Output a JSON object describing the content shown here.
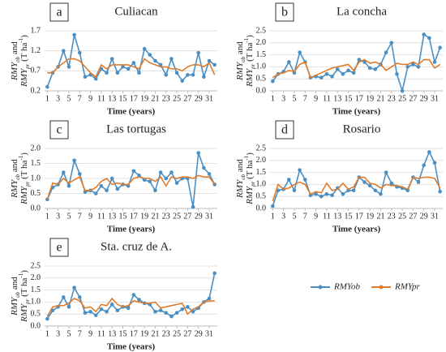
{
  "chart_data": [
    {
      "type": "line",
      "label": "a",
      "title": "Culiacan",
      "xlabel": "Time (years)",
      "ylabel": [
        "RMY",
        "ob",
        " and",
        "RMY",
        "pr",
        " (T ha",
        "-1",
        ")"
      ],
      "x": [
        1,
        2,
        3,
        4,
        5,
        6,
        7,
        8,
        9,
        10,
        11,
        12,
        13,
        14,
        15,
        16,
        17,
        18,
        19,
        20,
        21,
        22,
        23,
        24,
        25,
        26,
        27,
        28,
        29,
        30,
        31,
        32
      ],
      "xlim": [
        0.5,
        32.5
      ],
      "xticks": [
        1,
        3,
        5,
        7,
        9,
        11,
        13,
        15,
        17,
        19,
        21,
        23,
        25,
        27,
        29,
        31
      ],
      "ylim": [
        0.2,
        1.7
      ],
      "yticks": [
        0.2,
        0.7,
        1.2,
        1.7
      ],
      "grid": true,
      "series": [
        {
          "name": "RMYob",
          "color": "#4a8fc4",
          "values": [
            0.3,
            0.65,
            0.8,
            1.2,
            0.8,
            1.6,
            1.15,
            0.55,
            0.6,
            0.5,
            0.75,
            0.65,
            1.0,
            0.65,
            0.8,
            0.75,
            0.9,
            0.65,
            1.25,
            1.1,
            0.95,
            0.85,
            0.6,
            1.0,
            0.65,
            0.45,
            0.6,
            0.6,
            1.15,
            0.55,
            0.95,
            0.85
          ]
        },
        {
          "name": "RMYpr",
          "color": "#e07b2a",
          "values": [
            0.65,
            0.65,
            0.8,
            0.9,
            1.0,
            1.0,
            0.95,
            0.8,
            0.65,
            0.55,
            0.85,
            0.75,
            0.85,
            0.85,
            0.85,
            0.85,
            0.8,
            0.75,
            1.0,
            0.9,
            0.85,
            0.8,
            0.8,
            0.75,
            0.75,
            0.7,
            0.8,
            0.85,
            0.85,
            0.8,
            0.9,
            0.6
          ]
        }
      ]
    },
    {
      "type": "line",
      "label": "b",
      "title": "La concha",
      "xlabel": "Time (years)",
      "ylabel": [
        "RMY",
        "ob",
        " and",
        "RMY",
        "pr",
        " (T ha",
        "-1",
        ")"
      ],
      "x": [
        1,
        2,
        3,
        4,
        5,
        6,
        7,
        8,
        9,
        10,
        11,
        12,
        13,
        14,
        15,
        16,
        17,
        18,
        19,
        20,
        21,
        22,
        23,
        24,
        25,
        26,
        27,
        28,
        29,
        30,
        31,
        32
      ],
      "xlim": [
        0.5,
        32.5
      ],
      "xticks": [
        1,
        3,
        5,
        7,
        9,
        11,
        13,
        15,
        17,
        19,
        21,
        23,
        25,
        27,
        29,
        31
      ],
      "ylim": [
        0,
        2.5
      ],
      "yticks": [
        {
          "value": 0,
          "label": "0.0"
        },
        0.5,
        {
          "value": 1,
          "label": "1.0"
        },
        1.5,
        {
          "value": 2,
          "label": "2.0"
        },
        2.5
      ],
      "grid": true,
      "series": [
        {
          "name": "RMYob",
          "color": "#4a8fc4",
          "values": [
            0.4,
            0.7,
            0.8,
            1.2,
            0.75,
            1.6,
            1.2,
            0.55,
            0.6,
            0.55,
            0.7,
            0.6,
            0.9,
            0.7,
            0.85,
            0.75,
            1.3,
            1.2,
            0.95,
            0.9,
            1.1,
            1.6,
            2.0,
            0.7,
            0.0,
            1.0,
            1.1,
            1.0,
            2.35,
            2.2,
            1.2,
            1.8
          ]
        },
        {
          "name": "RMYpr",
          "color": "#e07b2a",
          "values": [
            0.55,
            0.7,
            0.75,
            0.85,
            0.8,
            1.1,
            1.2,
            0.55,
            0.65,
            0.75,
            0.85,
            0.95,
            1.0,
            1.05,
            1.1,
            0.85,
            1.2,
            1.3,
            1.15,
            1.2,
            1.1,
            0.85,
            1.0,
            1.15,
            1.1,
            1.1,
            1.2,
            1.1,
            1.3,
            1.3,
            0.95,
            1.1
          ]
        }
      ]
    },
    {
      "type": "line",
      "label": "c",
      "title": "Las tortugas",
      "xlabel": "Time (years)",
      "ylabel": [
        "RMY",
        "ob",
        " and",
        "RMY",
        "pr",
        " (T ha",
        "-1",
        ")"
      ],
      "x": [
        1,
        2,
        3,
        4,
        5,
        6,
        7,
        8,
        9,
        10,
        11,
        12,
        13,
        14,
        15,
        16,
        17,
        18,
        19,
        20,
        21,
        22,
        23,
        24,
        25,
        26,
        27,
        28,
        29,
        30,
        31,
        32
      ],
      "xlim": [
        0.5,
        32.5
      ],
      "xticks": [
        1,
        3,
        5,
        7,
        9,
        11,
        13,
        15,
        17,
        19,
        21,
        23,
        25,
        27,
        29,
        31
      ],
      "ylim": [
        0,
        2
      ],
      "yticks": [
        {
          "value": 0,
          "label": "0.0"
        },
        0.5,
        {
          "value": 1,
          "label": "1.0"
        },
        1.5,
        {
          "value": 2,
          "label": "2.0"
        }
      ],
      "grid": true,
      "series": [
        {
          "name": "RMYob",
          "color": "#4a8fc4",
          "values": [
            0.3,
            0.7,
            0.8,
            1.2,
            0.75,
            1.6,
            1.15,
            0.55,
            0.6,
            0.5,
            0.75,
            0.6,
            1.0,
            0.65,
            0.8,
            0.75,
            1.25,
            1.1,
            0.95,
            0.9,
            0.6,
            1.2,
            1.0,
            1.2,
            0.85,
            1.0,
            1.0,
            0.05,
            1.85,
            1.35,
            1.15,
            0.8
          ]
        },
        {
          "name": "RMYpr",
          "color": "#e07b2a",
          "values": [
            0.3,
            0.85,
            0.8,
            1.0,
            0.85,
            0.95,
            1.05,
            0.6,
            0.6,
            0.7,
            0.9,
            1.0,
            0.8,
            0.85,
            0.8,
            0.8,
            1.0,
            1.05,
            1.0,
            1.0,
            0.9,
            1.05,
            0.75,
            1.05,
            1.0,
            1.05,
            1.05,
            1.0,
            1.1,
            1.05,
            1.05,
            0.8
          ]
        }
      ]
    },
    {
      "type": "line",
      "label": "d",
      "title": "Rosario",
      "xlabel": "Time (years)",
      "ylabel": [
        "RMY",
        "ob",
        " and",
        "RMY",
        "pr",
        " (T ha",
        "-1",
        ")"
      ],
      "x": [
        1,
        2,
        3,
        4,
        5,
        6,
        7,
        8,
        9,
        10,
        11,
        12,
        13,
        14,
        15,
        16,
        17,
        18,
        19,
        20,
        21,
        22,
        23,
        24,
        25,
        26,
        27,
        28,
        29,
        30,
        31,
        32
      ],
      "xlim": [
        0.5,
        32.5
      ],
      "xticks": [
        1,
        3,
        5,
        7,
        9,
        11,
        13,
        15,
        17,
        19,
        21,
        23,
        25,
        27,
        29,
        31
      ],
      "ylim": [
        0,
        2.5
      ],
      "yticks": [
        {
          "value": 0,
          "label": "0.0"
        },
        0.5,
        {
          "value": 1,
          "label": "1.0"
        },
        1.5,
        {
          "value": 2,
          "label": "2.0"
        },
        2.5
      ],
      "grid": true,
      "series": [
        {
          "name": "RMYob",
          "color": "#4a8fc4",
          "values": [
            0.1,
            0.75,
            0.8,
            1.2,
            0.75,
            1.6,
            1.2,
            0.55,
            0.6,
            0.5,
            0.6,
            0.55,
            0.85,
            0.6,
            0.75,
            0.75,
            1.3,
            1.1,
            0.95,
            0.75,
            0.6,
            1.5,
            1.05,
            0.9,
            0.85,
            0.75,
            1.3,
            1.1,
            1.8,
            2.35,
            1.9,
            0.7
          ]
        },
        {
          "name": "RMYpr",
          "color": "#e07b2a",
          "values": [
            0.3,
            1.0,
            0.8,
            0.85,
            1.0,
            1.1,
            1.0,
            0.6,
            0.7,
            0.65,
            1.05,
            0.75,
            0.8,
            1.05,
            0.8,
            0.9,
            1.3,
            1.3,
            1.05,
            1.0,
            0.85,
            1.0,
            0.95,
            0.95,
            0.9,
            0.8,
            1.3,
            1.25,
            1.3,
            1.3,
            1.25,
            0.85
          ]
        }
      ]
    },
    {
      "type": "line",
      "label": "e",
      "title": "Sta. cruz de A.",
      "xlabel": "Time (years)",
      "ylabel": [
        "RMY",
        "ob",
        " and",
        "RMY",
        "pr",
        " (T ha",
        "-1",
        ")"
      ],
      "x": [
        1,
        2,
        3,
        4,
        5,
        6,
        7,
        8,
        9,
        10,
        11,
        12,
        13,
        14,
        15,
        16,
        17,
        18,
        19,
        20,
        21,
        22,
        23,
        24,
        25,
        26,
        27,
        28,
        29,
        30,
        31,
        32
      ],
      "xlim": [
        0.5,
        32.5
      ],
      "xticks": [
        1,
        3,
        5,
        7,
        9,
        11,
        13,
        15,
        17,
        19,
        21,
        23,
        25,
        27,
        29,
        31
      ],
      "ylim": [
        0,
        2.5
      ],
      "yticks": [
        {
          "value": 0,
          "label": "0.0"
        },
        0.5,
        {
          "value": 1,
          "label": "1.0"
        },
        1.5,
        {
          "value": 2,
          "label": "2.0"
        },
        2.5
      ],
      "grid": true,
      "series": [
        {
          "name": "RMYob",
          "color": "#4a8fc4",
          "values": [
            0.3,
            0.65,
            0.8,
            1.2,
            0.8,
            1.6,
            1.2,
            0.55,
            0.6,
            0.45,
            0.7,
            0.6,
            0.9,
            0.65,
            0.8,
            0.75,
            1.3,
            1.1,
            0.95,
            0.9,
            0.6,
            0.65,
            0.55,
            0.4,
            0.55,
            0.7,
            0.8,
            0.6,
            0.75,
            1.0,
            1.15,
            2.2
          ]
        },
        {
          "name": "RMYpr",
          "color": "#e07b2a",
          "values": [
            0.4,
            0.8,
            0.85,
            0.85,
            0.95,
            1.15,
            1.05,
            0.75,
            0.8,
            0.6,
            0.9,
            0.85,
            1.15,
            0.9,
            0.8,
            0.85,
            1.05,
            1.0,
            0.95,
            0.95,
            1.0,
            0.75,
            0.8,
            0.85,
            0.9,
            0.95,
            0.5,
            0.7,
            0.8,
            1.0,
            1.05,
            1.05
          ]
        }
      ]
    }
  ]
}
